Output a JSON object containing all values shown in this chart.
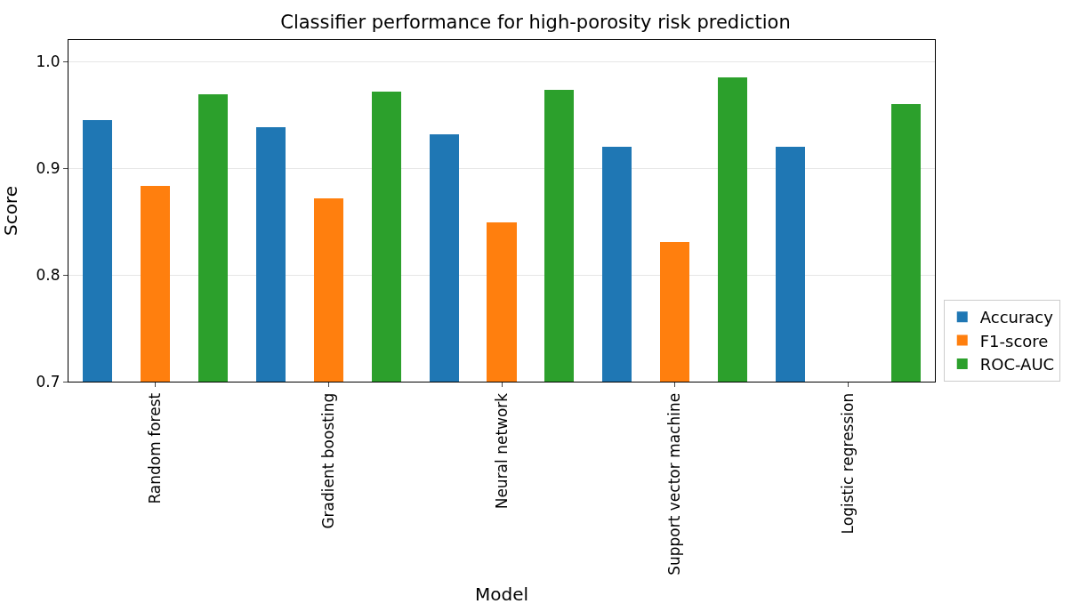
{
  "chart_data": {
    "type": "bar",
    "title": "Classifier performance for high-porosity risk prediction",
    "xlabel": "Model",
    "ylabel": "Score",
    "categories": [
      "Random forest",
      "Gradient boosting",
      "Neural network",
      "Support vector machine",
      "Logistic regression"
    ],
    "series": [
      {
        "name": "Accuracy",
        "color": "#1f77b4",
        "values": [
          0.945,
          0.938,
          0.932,
          0.92,
          0.92
        ]
      },
      {
        "name": "F1-score",
        "color": "#ff7f0e",
        "values": [
          0.883,
          0.872,
          0.849,
          0.831,
          null
        ]
      },
      {
        "name": "ROC-AUC",
        "color": "#2ca02c",
        "values": [
          0.969,
          0.972,
          0.973,
          0.985,
          0.96
        ]
      }
    ],
    "ylim": [
      0.7,
      1.02
    ],
    "yticks": [
      {
        "value": 0.7,
        "label": "0.7"
      },
      {
        "value": 0.8,
        "label": "0.8"
      },
      {
        "value": 0.9,
        "label": "0.9"
      },
      {
        "value": 1.0,
        "label": "1.0"
      }
    ],
    "grid": "y",
    "legend": "bottom right"
  }
}
